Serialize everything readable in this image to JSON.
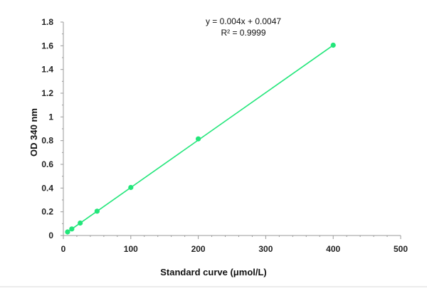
{
  "chart_data": {
    "type": "scatter",
    "xlabel": "Standard curve (μmol/L)",
    "ylabel": "OD 340 nm",
    "xlim": [
      0,
      500
    ],
    "ylim": [
      0,
      1.8
    ],
    "x_ticks": [
      "0",
      "100",
      "200",
      "300",
      "400",
      "500"
    ],
    "y_ticks": [
      "0",
      "0.2",
      "0.4",
      "0.6",
      "0.8",
      "1",
      "1.2",
      "1.4",
      "1.6",
      "1.8"
    ],
    "grid": false,
    "legend": "none",
    "series": [
      {
        "x": [
          6.25,
          12.5,
          25,
          50,
          100,
          200,
          400
        ],
        "y": [
          0.03,
          0.055,
          0.105,
          0.205,
          0.405,
          0.815,
          1.605
        ],
        "marker_color": "#22e67a",
        "trendline": {
          "slope": 0.004,
          "intercept": 0.0047,
          "color": "#22e67a"
        }
      }
    ],
    "annotations": {
      "equation": "y = 0.004x + 0.0047",
      "r_squared": "R² = 0.9999"
    }
  }
}
